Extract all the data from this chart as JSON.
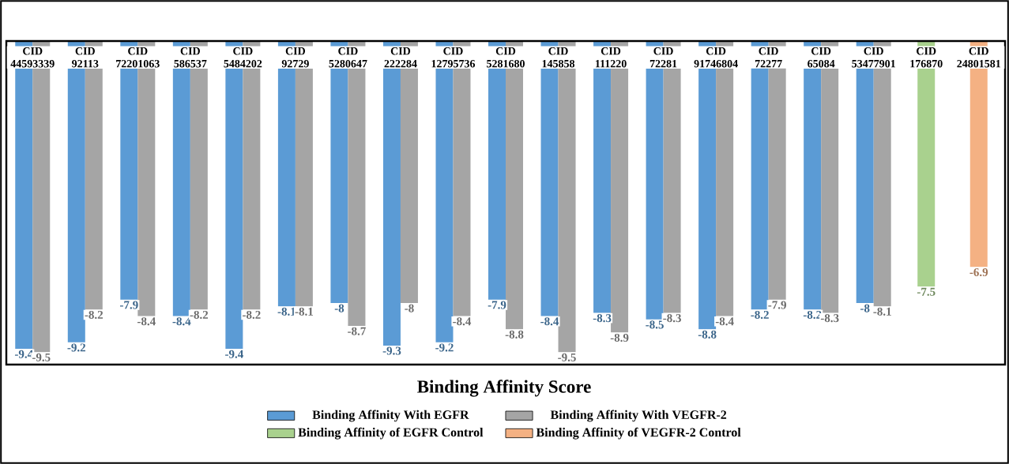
{
  "chart_data": {
    "type": "bar",
    "title": "Binding Affinity Score",
    "tick_labels": "x",
    "data_labels": true,
    "legend": "bottom",
    "categories": [
      "CID 44593339",
      "CID 92113",
      "CID 72201063",
      "CID 586537",
      "CID 5484202",
      "CID 92729",
      "CID 5280647",
      "CID 222284",
      "CID 12795736",
      "CID 5281680",
      "CID 145858",
      "CID 111220",
      "CID 72281",
      "CID 91746804",
      "CID 72277",
      "CID 65084",
      "CID 53477901",
      "CID 176870",
      "CID 24801581"
    ],
    "series": [
      {
        "name": "Binding Affinity With EGFR",
        "color": "#5b9bd5",
        "values": [
          -9.4,
          -9.2,
          -7.9,
          -8.4,
          -9.4,
          -8.1,
          -8,
          -9.3,
          -9.2,
          -7.9,
          -8.4,
          -8.3,
          -8.5,
          -8.8,
          -8.2,
          -8.2,
          -8,
          null,
          null
        ]
      },
      {
        "name": "Binding Affinity With VEGFR-2",
        "color": "#a5a5a5",
        "values": [
          -9.5,
          -8.2,
          -8.4,
          -8.2,
          -8.2,
          -8.1,
          -8.7,
          -8,
          -8.4,
          -8.8,
          -9.5,
          -8.9,
          -8.3,
          -8.4,
          -7.9,
          -8.3,
          -8.1,
          null,
          null
        ]
      },
      {
        "name": "Binding Affinity of EGFR Control",
        "color": "#a9d18e",
        "values": [
          null,
          null,
          null,
          null,
          null,
          null,
          null,
          null,
          null,
          null,
          null,
          null,
          null,
          null,
          null,
          null,
          null,
          -7.5,
          null
        ]
      },
      {
        "name": "Binding Affinity of VEGFR-2 Control",
        "color": "#f4b183",
        "values": [
          null,
          null,
          null,
          null,
          null,
          null,
          null,
          null,
          null,
          null,
          null,
          null,
          null,
          null,
          null,
          null,
          null,
          null,
          -6.9
        ]
      }
    ]
  }
}
